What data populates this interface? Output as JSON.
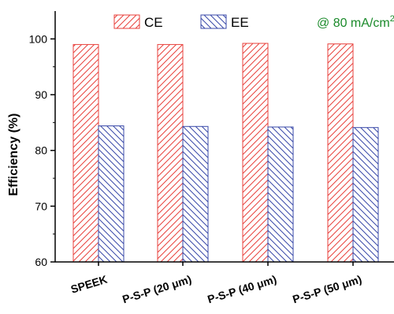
{
  "chart_data": {
    "type": "bar",
    "categories": [
      "SPEEK",
      "P-S-P (20 μm)",
      "P-S-P (40 μm)",
      "P-S-P (50 μm)"
    ],
    "series": [
      {
        "name": "CE",
        "values": [
          99.0,
          99.0,
          99.2,
          99.1
        ],
        "color": "#e8413c"
      },
      {
        "name": "EE",
        "values": [
          84.4,
          84.3,
          84.2,
          84.1
        ],
        "color": "#3848a8"
      }
    ],
    "ylabel": "Efficiency (%)",
    "ylim": [
      60,
      105
    ],
    "yticks": [
      60,
      70,
      80,
      90,
      100
    ],
    "annotation": {
      "text": "@ 80 mA/cm",
      "superscript": "2",
      "color": "#1a8a2a"
    },
    "legend_position": "top"
  }
}
